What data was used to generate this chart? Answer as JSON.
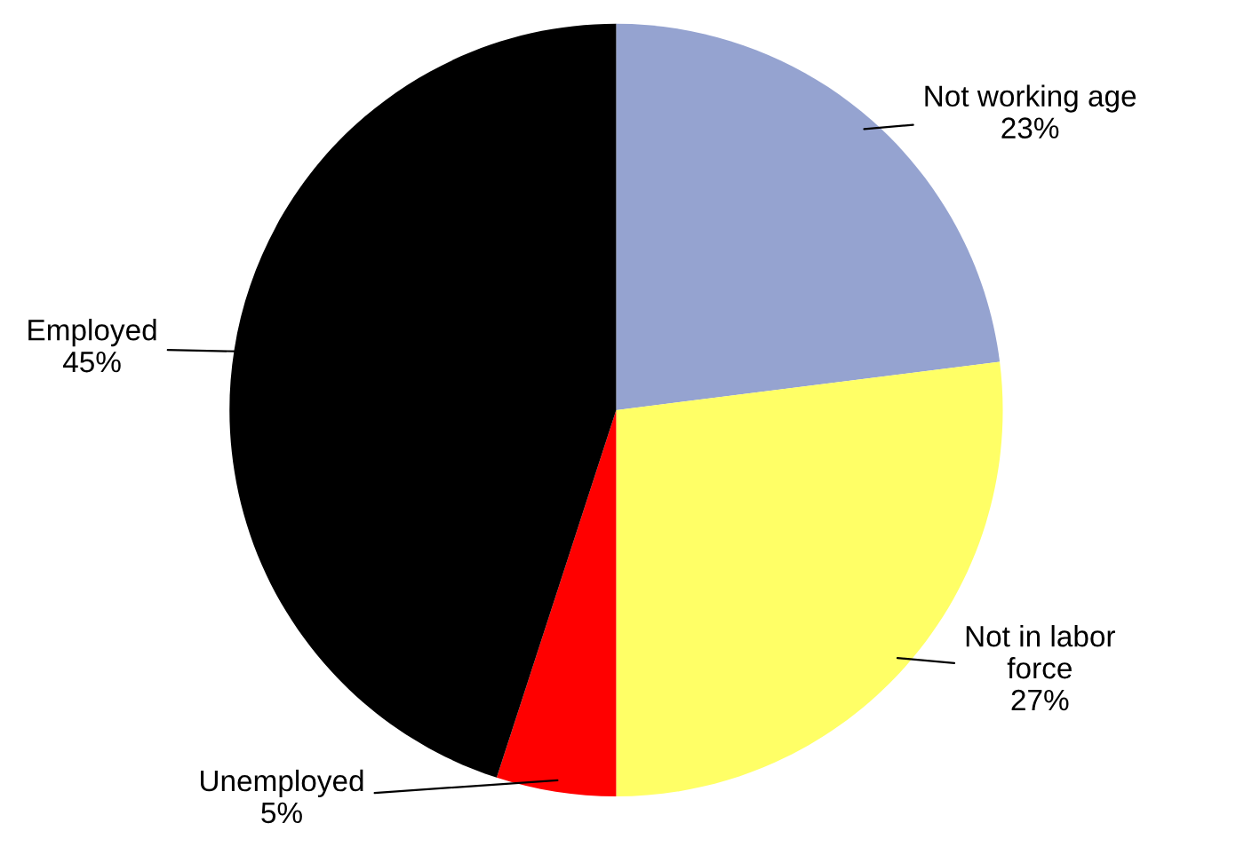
{
  "chart_data": {
    "type": "pie",
    "categories": [
      "Not working age",
      "Not in labor\nforce",
      "Unemployed",
      "Employed"
    ],
    "values": [
      23,
      27,
      5,
      45
    ],
    "colors": [
      "#95a3d0",
      "#ffff66",
      "#ff0000",
      "#000000"
    ],
    "value_labels": [
      "23%",
      "27%",
      "5%",
      "45%"
    ]
  }
}
